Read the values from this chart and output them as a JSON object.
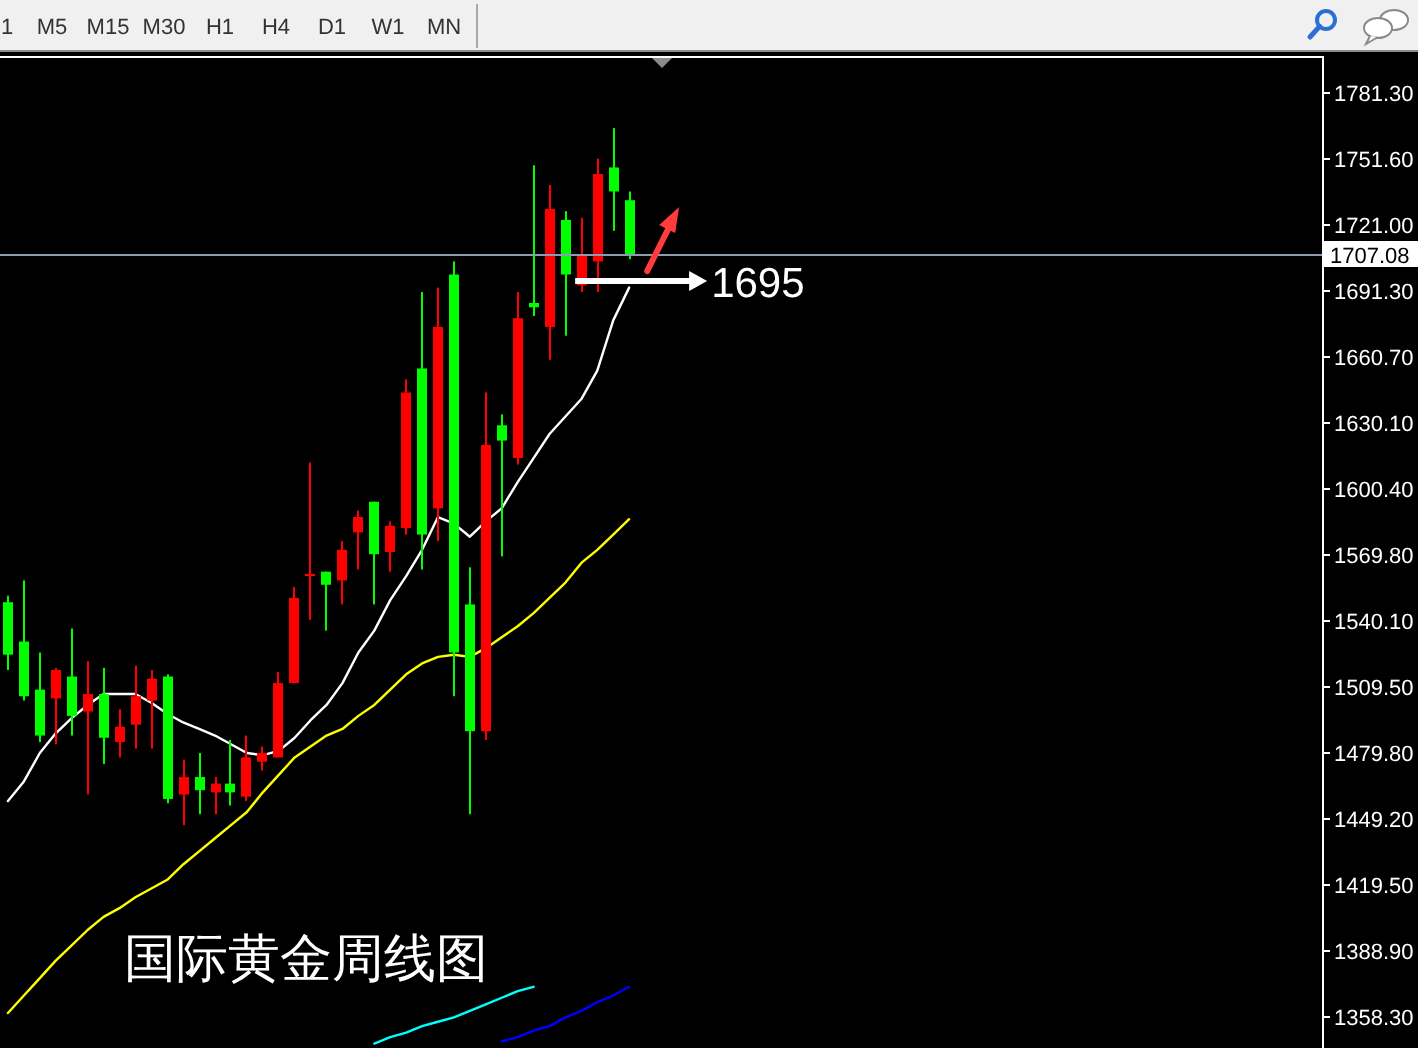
{
  "chart_data": {
    "type": "candlestick",
    "title": "国际黄金周线图",
    "categories": [
      null,
      null,
      null,
      null,
      null,
      null,
      null,
      null,
      null,
      null,
      null,
      null,
      null,
      null,
      null,
      null,
      null,
      null,
      null,
      null,
      null,
      null,
      null,
      null,
      null,
      null,
      null,
      null,
      null,
      null,
      null,
      null,
      null,
      null,
      null,
      null,
      null,
      null,
      null,
      null,
      null,
      null,
      null,
      null,
      null,
      null,
      null,
      null,
      null,
      null,
      null,
      null,
      null,
      null,
      null,
      null,
      null,
      null,
      null,
      null,
      null,
      null,
      null,
      null,
      null,
      null,
      null,
      null,
      null,
      null,
      null,
      null,
      null,
      null,
      null,
      null,
      null,
      null,
      null,
      null,
      null,
      null,
      null
    ],
    "ohlc": [
      [
        1548,
        1551,
        1517,
        1524
      ],
      [
        1530,
        1558,
        1503,
        1505
      ],
      [
        1508,
        1525,
        1484,
        1487
      ],
      [
        1504,
        1518,
        1483,
        1517
      ],
      [
        1514,
        1536,
        1487,
        1496
      ],
      [
        1498,
        1521,
        1460,
        1506
      ],
      [
        1506,
        1518,
        1474,
        1486
      ],
      [
        1484,
        1499,
        1477,
        1491
      ],
      [
        1492,
        1519,
        1481,
        1505
      ],
      [
        1503,
        1517,
        1481,
        1513
      ],
      [
        1514,
        1515,
        1456,
        1458
      ],
      [
        1460,
        1476,
        1446,
        1468
      ],
      [
        1468,
        1479,
        1451,
        1462
      ],
      [
        1461,
        1468,
        1451,
        1465
      ],
      [
        1465,
        1485,
        1455,
        1461
      ],
      [
        1459,
        1487,
        1457,
        1477
      ],
      [
        1475,
        1482,
        1471,
        1479
      ],
      [
        1477,
        1516,
        1477,
        1511
      ],
      [
        1511,
        1555,
        1511,
        1550
      ],
      [
        1560,
        1612,
        1540,
        1561
      ],
      [
        1562,
        1562,
        1535,
        1556
      ],
      [
        1558,
        1576,
        1547,
        1572
      ],
      [
        1580,
        1590,
        1563,
        1587
      ],
      [
        1594,
        1594,
        1547,
        1570
      ],
      [
        1571,
        1585,
        1562,
        1583
      ],
      [
        1582,
        1650,
        1579,
        1644
      ],
      [
        1655,
        1690,
        1563,
        1579
      ],
      [
        1591,
        1692,
        1576,
        1674
      ],
      [
        1698,
        1704,
        1505,
        1525
      ],
      [
        1547,
        1564,
        1451,
        1489
      ],
      [
        1489,
        1644,
        1485,
        1620
      ],
      [
        1629,
        1634,
        1569,
        1622
      ],
      [
        1614,
        1690,
        1611,
        1678
      ],
      [
        1685,
        1748,
        1679,
        1683
      ],
      [
        1674,
        1739,
        1659,
        1728
      ],
      [
        1723,
        1727,
        1670,
        1698
      ],
      [
        1693,
        1724,
        1690,
        1707
      ],
      [
        1704,
        1751,
        1690,
        1744
      ],
      [
        1747,
        1765,
        1718,
        1736
      ],
      [
        1732,
        1736,
        1705,
        1707
      ],
      null,
      null,
      null,
      null,
      null,
      null,
      null,
      null,
      null,
      null,
      null,
      null,
      null,
      null,
      null,
      null,
      null,
      null,
      null,
      null,
      null,
      null,
      null,
      null,
      null,
      null,
      null,
      null,
      null,
      null,
      null,
      null,
      null,
      null,
      null,
      null,
      null,
      null,
      null,
      null,
      null,
      null,
      null
    ],
    "colors": [
      "#00ff00",
      "#00ff00",
      "#00ff00",
      "#ff0000",
      "#00ff00",
      "#ff0000",
      "#00ff00",
      "#ff0000",
      "#ff0000",
      "#ff0000",
      "#00ff00",
      "#ff0000",
      "#00ff00",
      "#ff0000",
      "#00ff00",
      "#ff0000",
      "#ff0000",
      "#ff0000",
      "#ff0000",
      "#ff0000",
      "#00ff00",
      "#ff0000",
      "#ff0000",
      "#00ff00",
      "#ff0000",
      "#ff0000",
      "#00ff00",
      "#ff0000",
      "#00ff00",
      "#00ff00",
      "#ff0000",
      "#00ff00",
      "#ff0000",
      "#00ff00",
      "#ff0000",
      "#00ff00",
      "#ff0000",
      "#ff0000",
      "#00ff00",
      "#00ff00",
      null,
      null,
      null,
      null,
      null,
      null,
      null,
      null,
      null,
      null,
      null,
      null,
      null,
      null,
      null,
      null,
      null,
      null,
      null,
      null,
      null,
      null,
      null,
      null,
      null,
      null,
      null,
      null,
      null,
      null,
      null,
      null,
      null,
      null,
      null,
      null,
      null,
      null,
      null,
      null,
      null,
      null,
      null
    ],
    "series": [
      {
        "type": "line",
        "color": "#ffffff",
        "values": [
          1457,
          1466,
          1479,
          1488,
          1495,
          1501,
          1506,
          1506,
          1506,
          1502,
          1497,
          1493,
          1490,
          1487,
          1483,
          1479,
          1478,
          1480,
          1486,
          1494,
          1501,
          1511,
          1525,
          1535,
          1549,
          1560,
          1572,
          1587,
          1584,
          1578,
          1585,
          1591,
          1603,
          1614,
          1625,
          1633,
          1641,
          1654,
          1677,
          1692,
          null,
          null,
          null,
          null,
          null,
          null,
          null,
          null,
          null,
          null,
          null,
          null,
          null,
          null,
          null,
          null,
          null,
          null,
          null,
          null,
          null,
          null,
          null,
          null,
          null,
          null,
          null,
          null,
          null,
          null,
          null,
          null,
          null,
          null,
          null,
          null,
          null,
          null,
          null,
          null,
          null,
          null,
          null
        ]
      },
      {
        "type": "line",
        "color": "#ffff00",
        "values": [
          1360,
          1368,
          1376,
          1384,
          1391,
          1398,
          1404,
          1408,
          1413,
          1417,
          1421,
          1428,
          1434,
          1440,
          1446,
          1452,
          1461,
          1469,
          1477,
          1482,
          1487,
          1490,
          1496,
          1501,
          1508,
          1515,
          1520,
          1523,
          1524,
          1523,
          1527,
          1532,
          1537,
          1543,
          1550,
          1557,
          1566,
          1572,
          1579,
          1586,
          null,
          null,
          null,
          null,
          null,
          null,
          null,
          null,
          null,
          null,
          null,
          null,
          null,
          null,
          null,
          null,
          null,
          null,
          null,
          null,
          null,
          null,
          null,
          null,
          null,
          null,
          null,
          null,
          null,
          null,
          null,
          null,
          null,
          null,
          null,
          null,
          null,
          null,
          null,
          null,
          null,
          null,
          null
        ]
      },
      {
        "type": "line",
        "color": "#00ffff",
        "values": [
          null,
          null,
          null,
          null,
          null,
          null,
          null,
          null,
          null,
          null,
          null,
          null,
          null,
          null,
          null,
          null,
          null,
          null,
          null,
          null,
          null,
          null,
          null,
          1346,
          1349,
          1351,
          1354,
          1356,
          1358,
          1361,
          1364,
          1367,
          1370,
          1372,
          null,
          null,
          null,
          null,
          null,
          null,
          null,
          null,
          null,
          null,
          null,
          null,
          null,
          null,
          null,
          null,
          null,
          null,
          null,
          null,
          null,
          null,
          null,
          null,
          null,
          null,
          null,
          null,
          null,
          null,
          null,
          null,
          null,
          null,
          null,
          null,
          null,
          null,
          null,
          null,
          null,
          null,
          null,
          null,
          null,
          null,
          null,
          null,
          null
        ]
      },
      {
        "type": "line",
        "color": "#0000ff",
        "values": [
          null,
          null,
          null,
          null,
          null,
          null,
          null,
          null,
          null,
          null,
          null,
          null,
          null,
          null,
          null,
          null,
          null,
          null,
          null,
          null,
          null,
          null,
          null,
          null,
          null,
          null,
          null,
          null,
          null,
          null,
          null,
          1347,
          1349,
          1352,
          1354,
          1358,
          1361,
          1365,
          1368,
          1372,
          null,
          null,
          null,
          null,
          null,
          null,
          null,
          null,
          null,
          null,
          null,
          null,
          null,
          null,
          null,
          null,
          null,
          null,
          null,
          null,
          null,
          null,
          null,
          null,
          null,
          null,
          null,
          null,
          null,
          null,
          null,
          null,
          null,
          null,
          null,
          null,
          null,
          null,
          null,
          null,
          null,
          null,
          null
        ]
      }
    ],
    "ylim": [
      1344,
      1798
    ],
    "yticks": [
      {
        "value": 1781.3,
        "label": "1781.30"
      },
      {
        "value": 1751.6,
        "label": "1751.60"
      },
      {
        "value": 1721,
        "label": "1721.00"
      },
      {
        "value": 1691.3,
        "label": "1691.30"
      },
      {
        "value": 1660.7,
        "label": "1660.70"
      },
      {
        "value": 1630.1,
        "label": "1630.10"
      },
      {
        "value": 1600.4,
        "label": "1600.40"
      },
      {
        "value": 1569.8,
        "label": "1569.80"
      },
      {
        "value": 1540.1,
        "label": "1540.10"
      },
      {
        "value": 1509.5,
        "label": "1509.50"
      },
      {
        "value": 1479.8,
        "label": "1479.80"
      },
      {
        "value": 1449.2,
        "label": "1449.20"
      },
      {
        "value": 1419.5,
        "label": "1419.50"
      },
      {
        "value": 1388.9,
        "label": "1388.90"
      },
      {
        "value": 1358.3,
        "label": "1358.30"
      }
    ],
    "tick_labels": "y",
    "ref_lines": [
      {
        "axis": "y",
        "value": 1707.08,
        "label": "1707.08",
        "color": "#8c9bb0"
      }
    ],
    "annotations": [
      "1",
      "M5",
      "M15",
      "M30",
      "H1",
      "H4",
      "D1",
      "W1",
      "MN",
      "1695"
    ]
  }
}
